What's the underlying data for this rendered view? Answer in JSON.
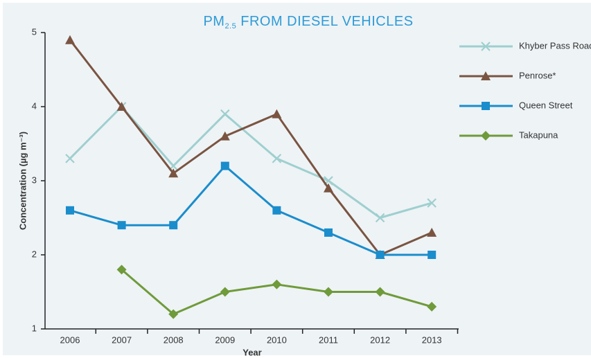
{
  "chart_data": {
    "type": "line",
    "title": "PM",
    "title_subscript": "2.5",
    "title_rest": "FROM DIESEL VEHICLES",
    "title_color": "#2e9bd6",
    "x_label": "Year",
    "y_label": "Concentration (µg m⁻³)",
    "categories": [
      "2006",
      "2007",
      "2008",
      "2009",
      "2010",
      "2011",
      "2012",
      "2013"
    ],
    "ylim": [
      1,
      5
    ],
    "yticks": [
      1,
      2,
      3,
      4,
      5
    ],
    "series": [
      {
        "name": "Khyber Pass Road",
        "color": "#9fcfcf",
        "marker": "x",
        "values": [
          3.3,
          4.0,
          3.2,
          3.9,
          3.3,
          3.0,
          2.5,
          2.7
        ]
      },
      {
        "name": "Penrose*",
        "color": "#7a5441",
        "marker": "triangle",
        "values": [
          4.9,
          4.0,
          3.1,
          3.6,
          3.9,
          2.9,
          2.0,
          2.3
        ]
      },
      {
        "name": "Queen Street",
        "color": "#1a8dcc",
        "marker": "square",
        "values": [
          2.6,
          2.4,
          2.4,
          3.2,
          2.6,
          2.3,
          2.0,
          2.0
        ]
      },
      {
        "name": "Takapuna",
        "color": "#6f9b3a",
        "marker": "diamond",
        "values": [
          null,
          1.8,
          1.2,
          1.5,
          1.6,
          1.5,
          1.5,
          1.3
        ]
      }
    ],
    "legend": "right"
  }
}
